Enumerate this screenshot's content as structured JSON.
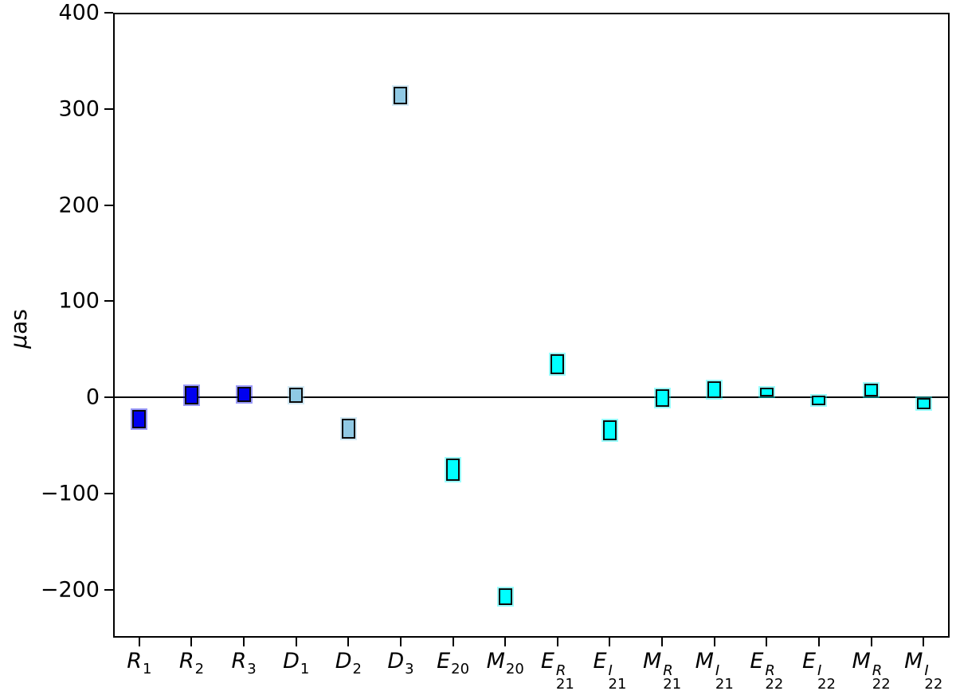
{
  "figure": {
    "background": "#ffffff",
    "axis_color": "#000000"
  },
  "chart_data": {
    "type": "bar",
    "subtype": "error-box-markers",
    "title": "",
    "xlabel": "",
    "ylabel": "μas",
    "ylabel_parts": {
      "mu": "μ",
      "as": "as"
    },
    "ylim": [
      -250,
      400
    ],
    "yticks": [
      {
        "value": 400,
        "label": "400"
      },
      {
        "value": 300,
        "label": "300"
      },
      {
        "value": 200,
        "label": "200"
      },
      {
        "value": 100,
        "label": "100"
      },
      {
        "value": 0,
        "label": "0"
      },
      {
        "value": -100,
        "label": "−100"
      },
      {
        "value": -200,
        "label": "−200"
      }
    ],
    "zero_line": true,
    "grid": false,
    "legend": "none",
    "marker_edge_color": "#0a0a0a",
    "categories": [
      "R1",
      "R2",
      "R3",
      "D1",
      "D2",
      "D3",
      "E20",
      "M20",
      "E21R",
      "E21I",
      "M21R",
      "M21I",
      "E22R",
      "E22I",
      "M22R",
      "M22I"
    ],
    "points": [
      {
        "label": {
          "base": "R",
          "sup": "",
          "sub": "1"
        },
        "value": -22,
        "low": -32,
        "high": -13,
        "color": "#0000F0"
      },
      {
        "label": {
          "base": "R",
          "sup": "",
          "sub": "2"
        },
        "value": 3,
        "low": -7,
        "high": 12,
        "color": "#0000F0"
      },
      {
        "label": {
          "base": "R",
          "sup": "",
          "sub": "3"
        },
        "value": 3,
        "low": -5,
        "high": 11,
        "color": "#0000F0"
      },
      {
        "label": {
          "base": "D",
          "sup": "",
          "sub": "1"
        },
        "value": 2,
        "low": -6,
        "high": 10,
        "color": "#8FC9E4"
      },
      {
        "label": {
          "base": "D",
          "sup": "",
          "sub": "2"
        },
        "value": -32,
        "low": -43,
        "high": -22,
        "color": "#8FC9E4"
      },
      {
        "label": {
          "base": "D",
          "sup": "",
          "sub": "3"
        },
        "value": 314,
        "low": 305,
        "high": 323,
        "color": "#8FC9E4"
      },
      {
        "label": {
          "base": "E",
          "sup": "",
          "sub": "20"
        },
        "value": -75,
        "low": -87,
        "high": -64,
        "color": "#00FFFF"
      },
      {
        "label": {
          "base": "M",
          "sup": "",
          "sub": "20"
        },
        "value": -208,
        "low": -216,
        "high": -199,
        "color": "#00FFFF"
      },
      {
        "label": {
          "base": "E",
          "sup": "R",
          "sub": "21"
        },
        "value": 34,
        "low": 24,
        "high": 45,
        "color": "#00FFFF"
      },
      {
        "label": {
          "base": "E",
          "sup": "I",
          "sub": "21"
        },
        "value": -35,
        "low": -45,
        "high": -24,
        "color": "#00FFFF"
      },
      {
        "label": {
          "base": "M",
          "sup": "R",
          "sub": "21"
        },
        "value": -1,
        "low": -10,
        "high": 8,
        "color": "#00FFFF"
      },
      {
        "label": {
          "base": "M",
          "sup": "I",
          "sub": "21"
        },
        "value": 8,
        "low": -1,
        "high": 17,
        "color": "#00FFFF"
      },
      {
        "label": {
          "base": "E",
          "sup": "R",
          "sub": "22"
        },
        "value": 6,
        "low": 1,
        "high": 10,
        "color": "#00FFFF"
      },
      {
        "label": {
          "base": "E",
          "sup": "I",
          "sub": "22"
        },
        "value": -3,
        "low": -8,
        "high": 2,
        "color": "#00FFFF"
      },
      {
        "label": {
          "base": "M",
          "sup": "R",
          "sub": "22"
        },
        "value": 8,
        "low": 1,
        "high": 14,
        "color": "#00FFFF"
      },
      {
        "label": {
          "base": "M",
          "sup": "I",
          "sub": "22"
        },
        "value": -7,
        "low": -12,
        "high": -1,
        "color": "#00FFFF"
      }
    ]
  }
}
